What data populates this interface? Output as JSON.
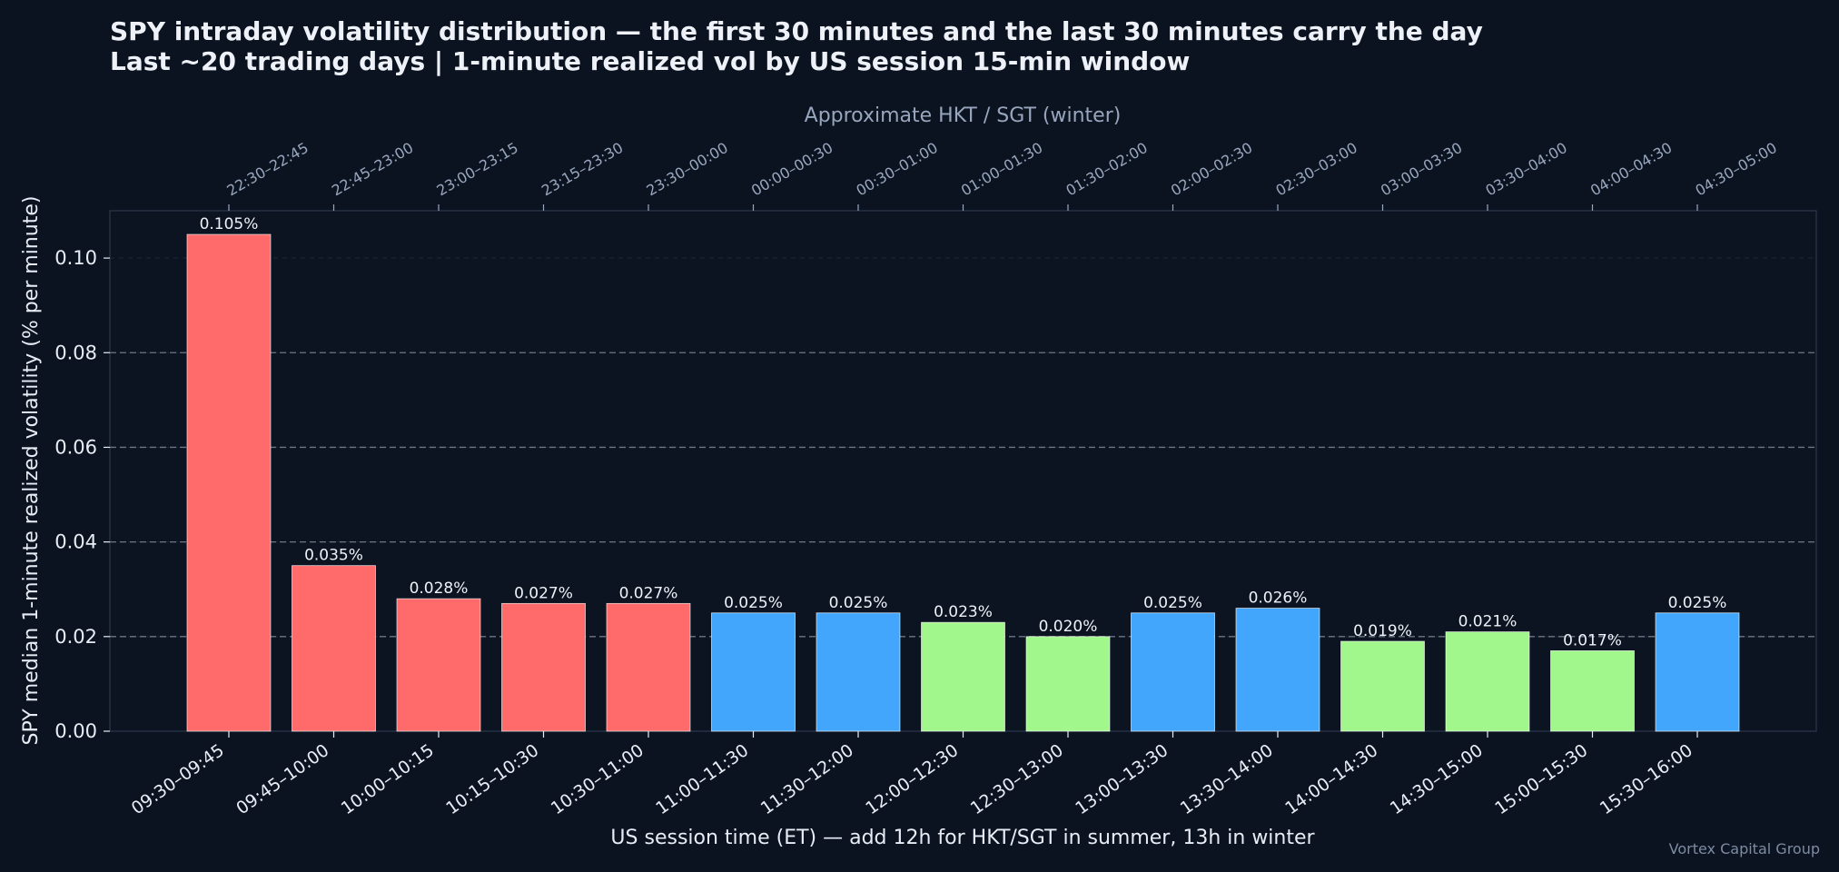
{
  "header": {
    "title": "SPY intraday volatility distribution — the first 30 minutes and the last 30 minutes carry the day",
    "subtitle": "Last ~20 trading days  |  1-minute realized vol by US session 15-min window"
  },
  "footer": {
    "watermark": "Vortex Capital Group"
  },
  "colors": {
    "background": "#0b1320",
    "high_vol_red": "#ff6b6b",
    "mid_blue": "#41a6fc",
    "low_green": "#a1f78b",
    "reference_line": "#6b7686"
  },
  "chart_data": {
    "type": "bar",
    "categories": [
      "09:30–09:45",
      "09:45–10:00",
      "10:00–10:15",
      "10:15–10:30",
      "10:30–11:00",
      "11:00–11:30",
      "11:30–12:00",
      "12:00–12:30",
      "12:30–13:00",
      "13:00–13:30",
      "13:30–14:00",
      "14:00–14:30",
      "14:30–15:00",
      "15:00–15:30",
      "15:30–16:00"
    ],
    "secondary_categories": [
      "22:30–22:45",
      "22:45–23:00",
      "23:00–23:15",
      "23:15–23:30",
      "23:30–00:00",
      "00:00–00:30",
      "00:30–01:00",
      "01:00–01:30",
      "01:30–02:00",
      "02:00–02:30",
      "02:30–03:00",
      "03:00–03:30",
      "03:30–04:00",
      "04:00–04:30",
      "04:30–05:00"
    ],
    "values": [
      0.105,
      0.035,
      0.028,
      0.027,
      0.027,
      0.025,
      0.025,
      0.023,
      0.02,
      0.025,
      0.026,
      0.019,
      0.021,
      0.017,
      0.025
    ],
    "data_labels": [
      "0.105%",
      "0.035%",
      "0.028%",
      "0.027%",
      "0.027%",
      "0.025%",
      "0.025%",
      "0.023%",
      "0.020%",
      "0.025%",
      "0.026%",
      "0.019%",
      "0.021%",
      "0.017%",
      "0.025%"
    ],
    "bar_colors": [
      "#ff6b6b",
      "#ff6b6b",
      "#ff6b6b",
      "#ff6b6b",
      "#ff6b6b",
      "#41a6fc",
      "#41a6fc",
      "#a1f78b",
      "#a1f78b",
      "#41a6fc",
      "#41a6fc",
      "#a1f78b",
      "#a1f78b",
      "#a1f78b",
      "#41a6fc"
    ],
    "xlabel": "US session time (ET)  —  add 12h for HKT/SGT in summer, 13h in winter",
    "secondary_xlabel": "Approximate HKT / SGT (winter)",
    "ylabel": "SPY median 1-minute realized volatility (% per minute)",
    "ylim": [
      0,
      0.11
    ],
    "yticks": [
      0.0,
      0.02,
      0.04,
      0.06,
      0.08,
      0.1
    ],
    "ytick_labels": [
      "0.00",
      "0.02",
      "0.04",
      "0.06",
      "0.08",
      "0.10"
    ],
    "reference_lines": [
      0.02,
      0.04,
      0.06,
      0.08
    ],
    "grid": true
  }
}
